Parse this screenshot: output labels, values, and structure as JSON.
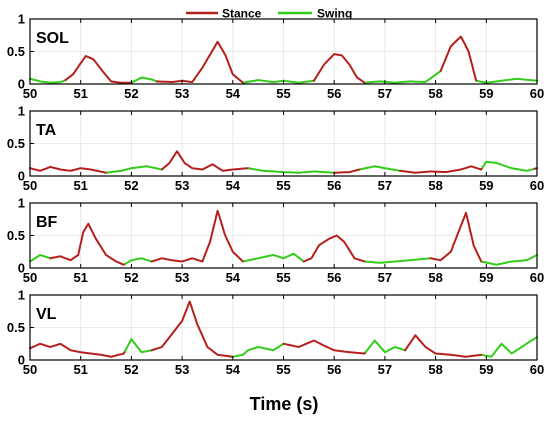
{
  "chart_data": {
    "type": "line",
    "legend": {
      "placement": "top-center",
      "entries": [
        {
          "name": "Stance",
          "color": "#b5201c"
        },
        {
          "name": "Swing",
          "color": "#33cc1a"
        }
      ]
    },
    "xlabel": "Time (s)",
    "xlim": [
      50,
      60
    ],
    "xticks": [
      50,
      51,
      52,
      53,
      54,
      55,
      56,
      57,
      58,
      59,
      60
    ],
    "ylim": [
      0,
      1
    ],
    "yticks": [
      0,
      0.5,
      1
    ],
    "ytick_labels": [
      "0",
      "0.5",
      "1"
    ],
    "grid": true,
    "panels": [
      {
        "label": "SOL",
        "stance_intervals": [
          [
            50.7,
            52.0
          ],
          [
            52.5,
            53.55
          ],
          [
            53.55,
            54.2
          ],
          [
            55.6,
            56.6
          ],
          [
            58.1,
            58.8
          ]
        ],
        "points": [
          [
            50.0,
            0.08
          ],
          [
            50.2,
            0.04
          ],
          [
            50.4,
            0.02
          ],
          [
            50.6,
            0.03
          ],
          [
            50.7,
            0.06
          ],
          [
            50.85,
            0.15
          ],
          [
            51.0,
            0.32
          ],
          [
            51.1,
            0.43
          ],
          [
            51.25,
            0.38
          ],
          [
            51.45,
            0.18
          ],
          [
            51.6,
            0.04
          ],
          [
            51.8,
            0.02
          ],
          [
            52.0,
            0.02
          ],
          [
            52.2,
            0.1
          ],
          [
            52.4,
            0.07
          ],
          [
            52.5,
            0.04
          ],
          [
            52.8,
            0.03
          ],
          [
            53.0,
            0.05
          ],
          [
            53.2,
            0.03
          ],
          [
            53.4,
            0.25
          ],
          [
            53.55,
            0.45
          ],
          [
            53.7,
            0.65
          ],
          [
            53.85,
            0.45
          ],
          [
            54.0,
            0.15
          ],
          [
            54.2,
            0.02
          ],
          [
            54.5,
            0.06
          ],
          [
            54.8,
            0.03
          ],
          [
            55.0,
            0.05
          ],
          [
            55.3,
            0.02
          ],
          [
            55.6,
            0.05
          ],
          [
            55.8,
            0.3
          ],
          [
            56.0,
            0.46
          ],
          [
            56.15,
            0.44
          ],
          [
            56.3,
            0.3
          ],
          [
            56.45,
            0.1
          ],
          [
            56.6,
            0.02
          ],
          [
            56.9,
            0.04
          ],
          [
            57.2,
            0.02
          ],
          [
            57.5,
            0.04
          ],
          [
            57.8,
            0.03
          ],
          [
            58.1,
            0.2
          ],
          [
            58.3,
            0.58
          ],
          [
            58.5,
            0.73
          ],
          [
            58.65,
            0.5
          ],
          [
            58.8,
            0.05
          ],
          [
            59.0,
            0.02
          ],
          [
            59.3,
            0.05
          ],
          [
            59.6,
            0.08
          ],
          [
            60.0,
            0.05
          ]
        ]
      },
      {
        "label": "TA",
        "stance_intervals": [
          [
            50.0,
            50.6
          ],
          [
            50.6,
            51.5
          ],
          [
            52.6,
            53.5
          ],
          [
            53.5,
            54.3
          ],
          [
            56.0,
            56.5
          ],
          [
            57.3,
            58.9
          ],
          [
            59.95,
            60.0
          ]
        ],
        "points": [
          [
            50.0,
            0.12
          ],
          [
            50.2,
            0.08
          ],
          [
            50.4,
            0.14
          ],
          [
            50.6,
            0.1
          ],
          [
            50.8,
            0.08
          ],
          [
            51.0,
            0.12
          ],
          [
            51.2,
            0.1
          ],
          [
            51.5,
            0.05
          ],
          [
            51.8,
            0.08
          ],
          [
            52.0,
            0.12
          ],
          [
            52.3,
            0.15
          ],
          [
            52.6,
            0.1
          ],
          [
            52.75,
            0.2
          ],
          [
            52.9,
            0.38
          ],
          [
            53.05,
            0.2
          ],
          [
            53.2,
            0.12
          ],
          [
            53.4,
            0.1
          ],
          [
            53.6,
            0.18
          ],
          [
            53.8,
            0.08
          ],
          [
            54.0,
            0.1
          ],
          [
            54.3,
            0.12
          ],
          [
            54.6,
            0.08
          ],
          [
            55.0,
            0.06
          ],
          [
            55.3,
            0.05
          ],
          [
            55.6,
            0.07
          ],
          [
            56.0,
            0.05
          ],
          [
            56.3,
            0.06
          ],
          [
            56.5,
            0.1
          ],
          [
            56.8,
            0.15
          ],
          [
            57.0,
            0.12
          ],
          [
            57.3,
            0.08
          ],
          [
            57.6,
            0.05
          ],
          [
            57.9,
            0.07
          ],
          [
            58.2,
            0.06
          ],
          [
            58.5,
            0.1
          ],
          [
            58.7,
            0.15
          ],
          [
            58.9,
            0.1
          ],
          [
            59.0,
            0.22
          ],
          [
            59.2,
            0.2
          ],
          [
            59.5,
            0.12
          ],
          [
            59.8,
            0.08
          ],
          [
            60.0,
            0.12
          ]
        ]
      },
      {
        "label": "BF",
        "stance_intervals": [
          [
            50.4,
            51.85
          ],
          [
            52.4,
            54.2
          ],
          [
            55.4,
            56.6
          ],
          [
            57.9,
            58.9
          ]
        ],
        "points": [
          [
            50.0,
            0.1
          ],
          [
            50.2,
            0.2
          ],
          [
            50.4,
            0.15
          ],
          [
            50.6,
            0.18
          ],
          [
            50.8,
            0.12
          ],
          [
            50.95,
            0.2
          ],
          [
            51.05,
            0.55
          ],
          [
            51.15,
            0.68
          ],
          [
            51.3,
            0.45
          ],
          [
            51.5,
            0.2
          ],
          [
            51.7,
            0.1
          ],
          [
            51.85,
            0.05
          ],
          [
            52.0,
            0.12
          ],
          [
            52.2,
            0.15
          ],
          [
            52.4,
            0.1
          ],
          [
            52.6,
            0.15
          ],
          [
            52.8,
            0.12
          ],
          [
            53.0,
            0.1
          ],
          [
            53.2,
            0.15
          ],
          [
            53.4,
            0.1
          ],
          [
            53.55,
            0.4
          ],
          [
            53.7,
            0.88
          ],
          [
            53.85,
            0.5
          ],
          [
            54.0,
            0.25
          ],
          [
            54.2,
            0.1
          ],
          [
            54.5,
            0.15
          ],
          [
            54.8,
            0.2
          ],
          [
            55.0,
            0.15
          ],
          [
            55.2,
            0.22
          ],
          [
            55.4,
            0.1
          ],
          [
            55.55,
            0.15
          ],
          [
            55.7,
            0.35
          ],
          [
            55.9,
            0.45
          ],
          [
            56.05,
            0.5
          ],
          [
            56.2,
            0.4
          ],
          [
            56.4,
            0.15
          ],
          [
            56.6,
            0.1
          ],
          [
            56.9,
            0.08
          ],
          [
            57.2,
            0.1
          ],
          [
            57.5,
            0.12
          ],
          [
            57.9,
            0.15
          ],
          [
            58.1,
            0.12
          ],
          [
            58.3,
            0.25
          ],
          [
            58.45,
            0.55
          ],
          [
            58.6,
            0.85
          ],
          [
            58.75,
            0.35
          ],
          [
            58.9,
            0.1
          ],
          [
            59.2,
            0.05
          ],
          [
            59.5,
            0.1
          ],
          [
            59.8,
            0.12
          ],
          [
            60.0,
            0.2
          ]
        ]
      },
      {
        "label": "VL",
        "stance_intervals": [
          [
            50.0,
            51.85
          ],
          [
            52.4,
            54.0
          ],
          [
            55.0,
            56.6
          ],
          [
            57.4,
            58.9
          ]
        ],
        "points": [
          [
            50.0,
            0.18
          ],
          [
            50.2,
            0.25
          ],
          [
            50.4,
            0.2
          ],
          [
            50.6,
            0.25
          ],
          [
            50.8,
            0.15
          ],
          [
            51.0,
            0.12
          ],
          [
            51.2,
            0.1
          ],
          [
            51.4,
            0.08
          ],
          [
            51.6,
            0.05
          ],
          [
            51.85,
            0.1
          ],
          [
            52.0,
            0.32
          ],
          [
            52.2,
            0.12
          ],
          [
            52.4,
            0.15
          ],
          [
            52.6,
            0.2
          ],
          [
            52.8,
            0.4
          ],
          [
            53.0,
            0.6
          ],
          [
            53.15,
            0.9
          ],
          [
            53.3,
            0.55
          ],
          [
            53.5,
            0.2
          ],
          [
            53.7,
            0.08
          ],
          [
            54.0,
            0.05
          ],
          [
            54.2,
            0.08
          ],
          [
            54.3,
            0.15
          ],
          [
            54.5,
            0.2
          ],
          [
            54.8,
            0.15
          ],
          [
            55.0,
            0.25
          ],
          [
            55.3,
            0.2
          ],
          [
            55.6,
            0.3
          ],
          [
            55.8,
            0.22
          ],
          [
            56.0,
            0.15
          ],
          [
            56.3,
            0.12
          ],
          [
            56.6,
            0.1
          ],
          [
            56.8,
            0.3
          ],
          [
            57.0,
            0.12
          ],
          [
            57.2,
            0.2
          ],
          [
            57.4,
            0.15
          ],
          [
            57.6,
            0.38
          ],
          [
            57.8,
            0.2
          ],
          [
            58.0,
            0.1
          ],
          [
            58.3,
            0.08
          ],
          [
            58.6,
            0.05
          ],
          [
            58.9,
            0.08
          ],
          [
            59.1,
            0.05
          ],
          [
            59.3,
            0.25
          ],
          [
            59.5,
            0.1
          ],
          [
            59.7,
            0.2
          ],
          [
            59.85,
            0.28
          ],
          [
            60.0,
            0.35
          ]
        ]
      }
    ]
  }
}
